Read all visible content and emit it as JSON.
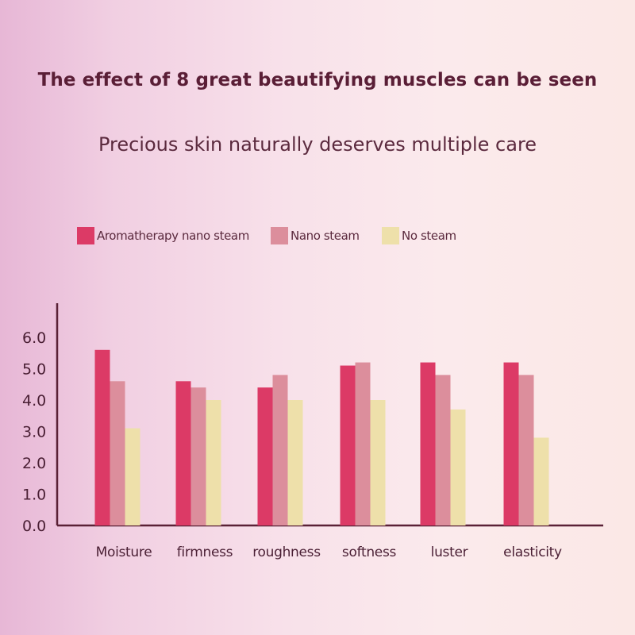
{
  "title": "The effect of 8 great beautifying muscles can be seen",
  "subtitle": "Precious skin naturally deserves multiple care",
  "colors": {
    "aromatherapy": "#dc3a66",
    "nano": "#dc8e9c",
    "no_steam": "#eee0aa",
    "axis": "#5a2136",
    "text": "#4a1f34"
  },
  "chart_data": {
    "type": "bar",
    "title": "",
    "xlabel": "",
    "ylabel": "",
    "ylim": [
      0,
      6.0
    ],
    "yticks": [
      "0.0",
      "1.0",
      "2.0",
      "3.0",
      "4.0",
      "5.0",
      "6.0"
    ],
    "legend_position": "top-left",
    "grid": false,
    "categories": [
      "Moisture",
      "firmness",
      "roughness",
      "softness",
      "luster",
      "elasticity"
    ],
    "series": [
      {
        "name": "Aromatherapy nano steam",
        "color": "#dc3a66",
        "values": [
          5.6,
          4.6,
          4.4,
          5.1,
          5.2,
          5.2
        ]
      },
      {
        "name": "Nano steam",
        "color": "#dc8e9c",
        "values": [
          4.6,
          4.4,
          4.8,
          5.2,
          4.8,
          4.8
        ]
      },
      {
        "name": "No steam",
        "color": "#eee0aa",
        "values": [
          3.1,
          4.0,
          4.0,
          4.0,
          3.7,
          2.8
        ]
      }
    ]
  }
}
